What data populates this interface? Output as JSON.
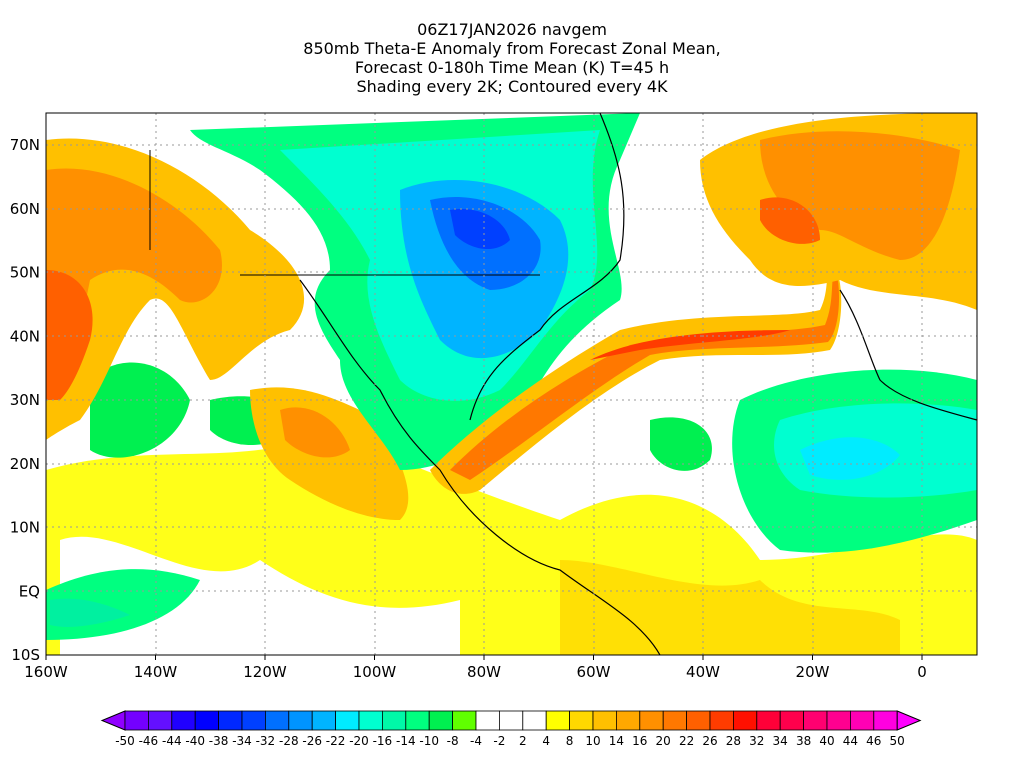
{
  "title": {
    "line1": "06Z17JAN2026 navgem",
    "line2": "850mb Theta-E Anomaly from Forecast Zonal Mean,",
    "line3": "Forecast 0-180h Time Mean (K) T=45 h",
    "line4": "Shading every 2K; Contoured every 4K"
  },
  "axes": {
    "lon_labels": [
      "160W",
      "140W",
      "120W",
      "100W",
      "80W",
      "60W",
      "40W",
      "20W",
      "0"
    ],
    "lat_labels": [
      "70N",
      "60N",
      "50N",
      "40N",
      "30N",
      "20N",
      "10N",
      "EQ",
      "10S"
    ]
  },
  "colorbar": {
    "labels": [
      "-50",
      "-46",
      "-44",
      "-40",
      "-38",
      "-34",
      "-32",
      "-28",
      "-26",
      "-22",
      "-20",
      "-16",
      "-14",
      "-10",
      "-8",
      "-4",
      "-2",
      "2",
      "4",
      "8",
      "10",
      "14",
      "16",
      "20",
      "22",
      "26",
      "28",
      "32",
      "34",
      "38",
      "40",
      "44",
      "46",
      "50"
    ],
    "low_color": "#9000ff",
    "high_color": "#ff00ff",
    "colors": [
      "#7400ff",
      "#6410ff",
      "#2000ff",
      "#0000ff",
      "#0028ff",
      "#0040ff",
      "#0070ff",
      "#0094ff",
      "#00b4ff",
      "#00ecff",
      "#00ffd0",
      "#00f8a8",
      "#00ff80",
      "#00f050",
      "#60ff00",
      "#ffffff",
      "#ffffff",
      "#ffffff",
      "#ffff00",
      "#ffd800",
      "#ffc000",
      "#ffa800",
      "#ff9000",
      "#ff7800",
      "#ff6000",
      "#ff3c00",
      "#ff1000",
      "#ff0038",
      "#ff004c",
      "#ff0070",
      "#ff0090",
      "#ff00b4",
      "#ff00e0"
    ]
  }
}
